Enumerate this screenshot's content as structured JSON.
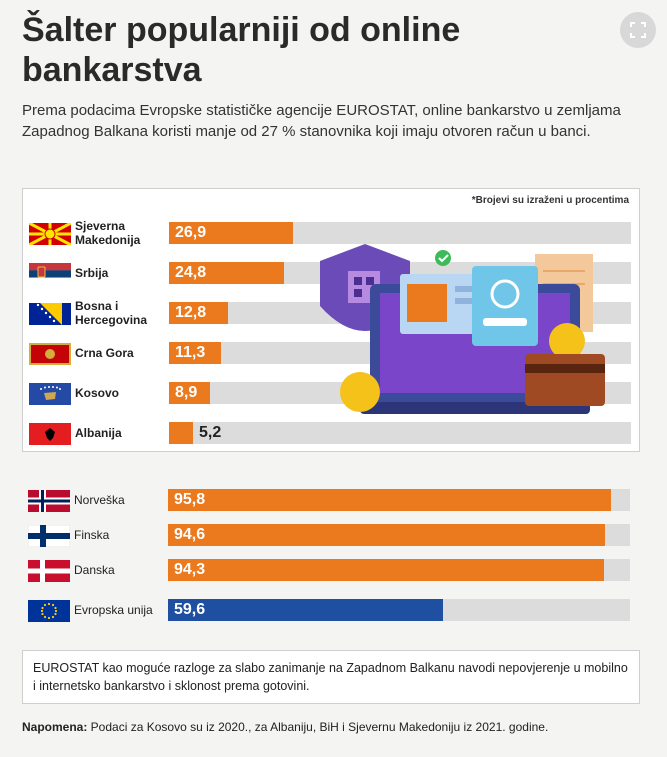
{
  "title": "Šalter popularniji od online bankarstva",
  "subtitle": "Prema podacima Evropske statističke agencije EUROSTAT, online bankarstvo u zemljama Zapadnog Balkana koristi manje od 27 % stanovnika koji imaju otvoren račun u banci.",
  "unit_note": "*Brojevi su izraženi u procentima",
  "explanation": "EUROSTAT kao moguće razloge za slabo zanimanje na Zapadnom Balkanu navodi nepovjerenje u mobilno i internetsko bankarstvo i sklonost prema gotovini.",
  "footnote_label": "Napomena:",
  "footnote_text": " Podaci za Kosovo su iz 2020., za Albaniju, BiH i Sjevernu Makedoniju iz 2021. godine.",
  "colors": {
    "orange": "#ea7a1d",
    "blue": "#1f4fa0",
    "track": "#dcdcdc"
  },
  "chart_data": [
    {
      "type": "bar",
      "orientation": "horizontal",
      "xlim": [
        0,
        100
      ],
      "categories": [
        "Sjeverna Makedonija",
        "Srbija",
        "Bosna i Hercegovina",
        "Crna Gora",
        "Kosovo",
        "Albanija"
      ],
      "values": [
        26.9,
        24.8,
        12.8,
        11.3,
        8.9,
        5.2
      ],
      "value_labels": [
        "26,9",
        "24,8",
        "12,8",
        "11,3",
        "8,9",
        "5,2"
      ]
    },
    {
      "type": "bar",
      "orientation": "horizontal",
      "xlim": [
        0,
        100
      ],
      "categories": [
        "Norveška",
        "Finska",
        "Danska",
        "Evropska unija"
      ],
      "values": [
        95.8,
        94.6,
        94.3,
        59.6
      ],
      "value_labels": [
        "95,8",
        "94,6",
        "94,3",
        "59,6"
      ]
    }
  ],
  "label_lines": {
    "mk": [
      "Sjeverna",
      "Makedonija"
    ],
    "ba": [
      "Bosna i",
      "Hercegovina"
    ]
  }
}
